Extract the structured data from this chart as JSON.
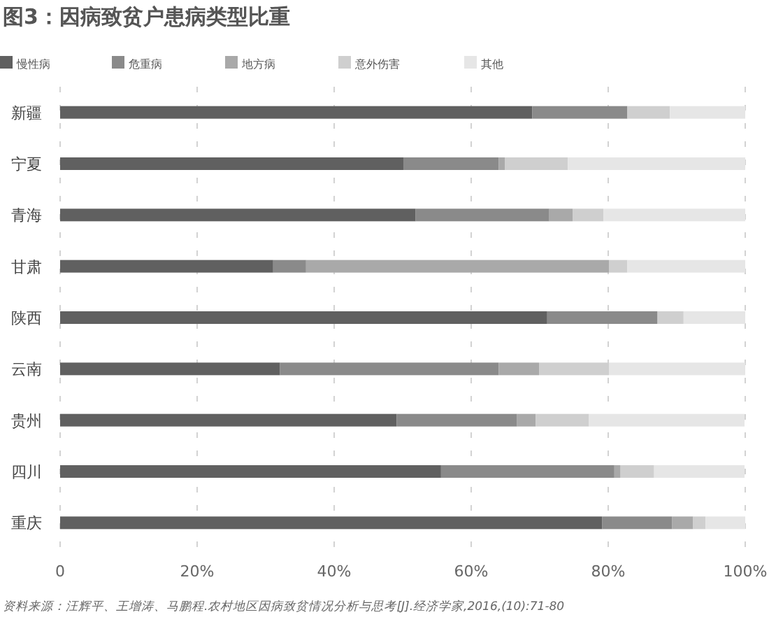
{
  "chart_data": {
    "type": "bar",
    "orientation": "horizontal",
    "stacked": true,
    "title": "图3：因病致贫户患病类型比重",
    "categories": [
      "新疆",
      "宁夏",
      "青海",
      "甘肃",
      "陕西",
      "云南",
      "贵州",
      "四川",
      "重庆"
    ],
    "series": [
      {
        "name": "慢性病",
        "color": "#606060",
        "values": [
          68.9,
          50.1,
          51.9,
          31.1,
          71.1,
          32.1,
          49.1,
          55.6,
          79.1
        ]
      },
      {
        "name": "危重病",
        "color": "#8a8a8a",
        "values": [
          13.9,
          13.9,
          19.5,
          4.8,
          16.1,
          31.9,
          17.6,
          25.3,
          10.2
        ]
      },
      {
        "name": "地方病",
        "color": "#a9a9a9",
        "values": [
          0,
          0.9,
          3.4,
          44.2,
          0,
          5.9,
          2.7,
          0.9,
          3.1
        ]
      },
      {
        "name": "意外伤害",
        "color": "#cfcfcf",
        "values": [
          6.2,
          9.2,
          4.5,
          2.7,
          3.8,
          10.2,
          7.8,
          4.9,
          1.8
        ]
      },
      {
        "name": "其他",
        "color": "#e6e6e6",
        "values": [
          11.0,
          25.9,
          20.7,
          17.2,
          9.0,
          19.9,
          22.7,
          13.2,
          5.8
        ]
      }
    ],
    "xlim": [
      0,
      100
    ],
    "xticks": [
      0,
      {
        "value": 20,
        "label": "20%"
      },
      {
        "value": 40,
        "label": "40%"
      },
      {
        "value": 60,
        "label": "60%"
      },
      {
        "value": 80,
        "label": "80%"
      },
      {
        "value": 100,
        "label": "100%"
      }
    ],
    "grid": "x",
    "legend": "top left",
    "annotations": [
      "资料来源：汪辉平、王增涛、马鹏程.农村地区因病致贫情况分析与思考[J].经济学家,2016,(10):71-80"
    ]
  }
}
